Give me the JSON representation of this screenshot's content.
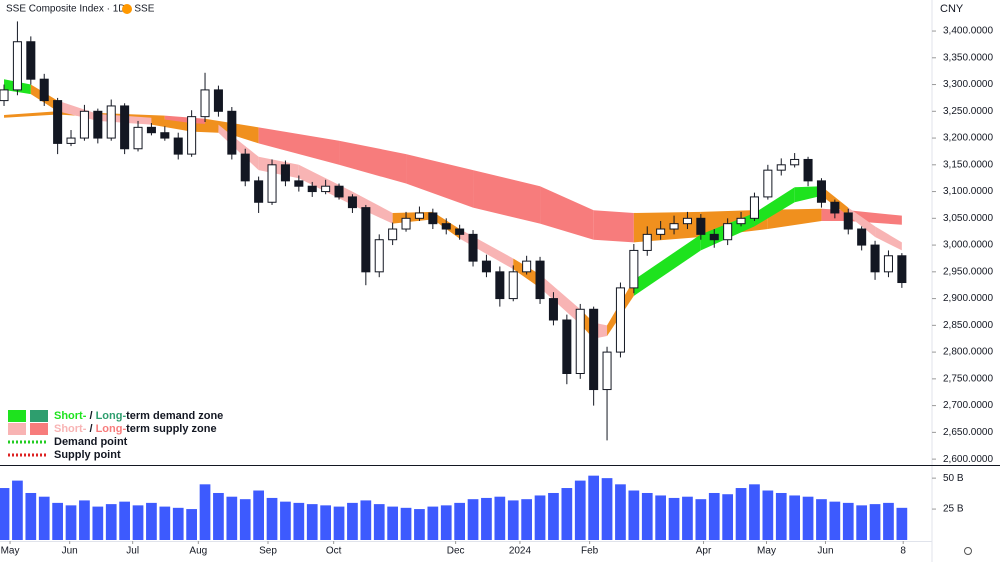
{
  "header": {
    "title": "SSE Composite Index · 1D · SSE",
    "currency": "CNY"
  },
  "chart_data": {
    "type": "candlestick",
    "xlim": [
      -0.3,
      69.1
    ],
    "xticks": [
      {
        "value": 0.45,
        "label": "May"
      },
      {
        "value": 4.9,
        "label": "Jun"
      },
      {
        "value": 9.6,
        "label": "Jul"
      },
      {
        "value": 14.5,
        "label": "Aug"
      },
      {
        "value": 19.7,
        "label": "Sep"
      },
      {
        "value": 24.6,
        "label": "Oct"
      },
      {
        "value": 33.7,
        "label": "Dec"
      },
      {
        "value": 38.5,
        "label": "2024"
      },
      {
        "value": 43.7,
        "label": "Feb"
      },
      {
        "value": 52.2,
        "label": "Apr"
      },
      {
        "value": 56.9,
        "label": "May"
      },
      {
        "value": 61.3,
        "label": "Jun"
      },
      {
        "value": 67.1,
        "label": "8"
      }
    ],
    "ylim": [
      2589,
      3458
    ],
    "yticks": [
      {
        "value": 2600,
        "label": "2,600.0000"
      },
      {
        "value": 2650,
        "label": "2,650.0000"
      },
      {
        "value": 2700,
        "label": "2,700.0000"
      },
      {
        "value": 2750,
        "label": "2,750.0000"
      },
      {
        "value": 2800,
        "label": "2,800.0000"
      },
      {
        "value": 2850,
        "label": "2,850.0000"
      },
      {
        "value": 2900,
        "label": "2,900.0000"
      },
      {
        "value": 2950,
        "label": "2,950.0000"
      },
      {
        "value": 3000,
        "label": "3,000.0000"
      },
      {
        "value": 3050,
        "label": "3,050.0000"
      },
      {
        "value": 3100,
        "label": "3,100.0000"
      },
      {
        "value": 3150,
        "label": "3,150.0000"
      },
      {
        "value": 3200,
        "label": "3,200.0000"
      },
      {
        "value": 3250,
        "label": "3,250.0000"
      },
      {
        "value": 3300,
        "label": "3,300.0000"
      },
      {
        "value": 3350,
        "label": "3,350.0000"
      },
      {
        "value": 3400,
        "label": "3,400.0000"
      }
    ],
    "up_color": "#ffffff",
    "down_color": "#131722",
    "open": [
      3270,
      3290,
      3380,
      3310,
      3270,
      3190,
      3200,
      3250,
      3200,
      3260,
      3180,
      3220,
      3210,
      3200,
      3170,
      3240,
      3290,
      3250,
      3170,
      3120,
      3080,
      3150,
      3120,
      3110,
      3100,
      3110,
      3090,
      3070,
      2950,
      3010,
      3030,
      3050,
      3060,
      3040,
      3030,
      3020,
      2970,
      2950,
      2900,
      2950,
      2970,
      2900,
      2860,
      2760,
      2880,
      2730,
      2800,
      2920,
      2990,
      3020,
      3030,
      3040,
      3050,
      3020,
      3010,
      3040,
      3050,
      3090,
      3140,
      3150,
      3160,
      3120,
      3080,
      3060,
      3030,
      3000,
      2950,
      2980
    ],
    "high": [
      3300,
      3418,
      3390,
      3320,
      3275,
      3215,
      3262,
      3255,
      3272,
      3265,
      3232,
      3228,
      3222,
      3210,
      3252,
      3322,
      3298,
      3258,
      3180,
      3128,
      3160,
      3158,
      3130,
      3118,
      3122,
      3115,
      3095,
      3075,
      3020,
      3042,
      3062,
      3072,
      3068,
      3050,
      3038,
      3028,
      2982,
      2960,
      2962,
      2980,
      2978,
      2912,
      2870,
      2890,
      2885,
      2810,
      2930,
      3002,
      3035,
      3045,
      3055,
      3062,
      3058,
      3030,
      3050,
      3062,
      3098,
      3150,
      3162,
      3172,
      3165,
      3125,
      3085,
      3068,
      3035,
      3008,
      2990,
      2985
    ],
    "low": [
      3260,
      3280,
      3300,
      3260,
      3170,
      3185,
      3195,
      3190,
      3195,
      3170,
      3175,
      3205,
      3195,
      3160,
      3165,
      3230,
      3240,
      3160,
      3110,
      3060,
      3075,
      3110,
      3100,
      3090,
      3095,
      3085,
      3060,
      2925,
      2940,
      3000,
      3025,
      3045,
      3030,
      3020,
      3010,
      2960,
      2940,
      2885,
      2895,
      2945,
      2890,
      2850,
      2740,
      2750,
      2700,
      2635,
      2790,
      2910,
      2980,
      3010,
      3020,
      3030,
      3010,
      2995,
      3000,
      3035,
      3045,
      3085,
      3130,
      3145,
      3110,
      3070,
      3050,
      3020,
      2990,
      2935,
      2940,
      2920
    ],
    "close": [
      3290,
      3380,
      3310,
      3270,
      3190,
      3200,
      3250,
      3200,
      3260,
      3180,
      3220,
      3210,
      3200,
      3170,
      3240,
      3290,
      3250,
      3170,
      3120,
      3080,
      3150,
      3120,
      3110,
      3100,
      3110,
      3090,
      3070,
      2950,
      3010,
      3030,
      3050,
      3060,
      3040,
      3030,
      3020,
      2970,
      2950,
      2900,
      2950,
      2970,
      2900,
      2860,
      2760,
      2880,
      2730,
      2800,
      2920,
      2990,
      3020,
      3030,
      3040,
      3050,
      3020,
      3010,
      3040,
      3050,
      3090,
      3140,
      3150,
      3160,
      3120,
      3080,
      3060,
      3030,
      3000,
      2950,
      2980,
      2930
    ],
    "bands": [
      {
        "x": [
          0,
          4,
          8,
          12,
          15,
          19,
          25,
          30,
          35,
          40,
          44,
          47,
          52,
          57,
          61,
          63,
          67
        ],
        "upper": [
          3243,
          3250,
          3246,
          3242,
          3236,
          3220,
          3195,
          3170,
          3140,
          3110,
          3065,
          3060,
          3062,
          3066,
          3068,
          3065,
          3055
        ],
        "lower": [
          3238,
          3244,
          3238,
          3228,
          3222,
          3190,
          3150,
          3115,
          3070,
          3040,
          3010,
          3005,
          3015,
          3030,
          3045,
          3045,
          3038
        ],
        "colors": [
          "#f0901e",
          "#f0901e",
          "#f0901e",
          "#f77c7c",
          "#f0901e",
          "#f77c7c",
          "#f77c7c",
          "#f77c7c",
          "#f77c7c",
          "#f77c7c",
          "#f77c7c",
          "#f0901e",
          "#f0901e",
          "#f0901e",
          "#f77c7c",
          "#f77c7c",
          "#f77c7c"
        ]
      },
      {
        "x": [
          0,
          2,
          4,
          7,
          11,
          14,
          16,
          19,
          22,
          26,
          29,
          32,
          34,
          38,
          40,
          43,
          44,
          45,
          47,
          52,
          56,
          59,
          61,
          63,
          65,
          67
        ],
        "upper": [
          3310,
          3300,
          3270,
          3245,
          3238,
          3228,
          3225,
          3165,
          3150,
          3100,
          3060,
          3062,
          3030,
          2975,
          2945,
          2880,
          2855,
          2850,
          2935,
          3020,
          3060,
          3108,
          3110,
          3070,
          3035,
          3005
        ],
        "lower": [
          3290,
          3282,
          3250,
          3232,
          3225,
          3212,
          3210,
          3140,
          3125,
          3075,
          3040,
          3048,
          3012,
          2955,
          2920,
          2852,
          2825,
          2830,
          2905,
          2990,
          3035,
          3080,
          3092,
          3055,
          3015,
          2990
        ],
        "colors": [
          "#1ee31e",
          "#f0901e",
          "#f8b4b4",
          "#f8b4b4",
          "#f0901e",
          "#f0901e",
          "#f8b4b4",
          "#f8b4b4",
          "#f8b4b4",
          "#f8b4b4",
          "#f0901e",
          "#f0901e",
          "#f8b4b4",
          "#f0901e",
          "#f8b4b4",
          "#f0901e",
          "#f8b4b4",
          "#f0901e",
          "#1ee31e",
          "#1ee31e",
          "#1ee31e",
          "#1ee31e",
          "#f0901e",
          "#f8b4b4",
          "#f8b4b4",
          "#f8b4b4"
        ]
      }
    ],
    "volume": {
      "color": "#3d5afe",
      "ylim": [
        0,
        59
      ],
      "yticks": [
        {
          "value": 25,
          "label": "25 B"
        },
        {
          "value": 50,
          "label": "50 B"
        }
      ],
      "values": [
        42,
        48,
        38,
        35,
        30,
        28,
        32,
        27,
        29,
        31,
        28,
        30,
        27,
        26,
        25,
        45,
        38,
        35,
        33,
        40,
        34,
        31,
        30,
        29,
        28,
        27,
        30,
        32,
        29,
        27,
        26,
        25,
        27,
        28,
        30,
        33,
        34,
        35,
        32,
        33,
        36,
        38,
        42,
        48,
        52,
        50,
        45,
        40,
        38,
        36,
        34,
        35,
        33,
        38,
        37,
        42,
        45,
        40,
        38,
        36,
        35,
        33,
        31,
        30,
        28,
        29,
        30,
        26
      ]
    },
    "legend": {
      "position": "bottom-left",
      "items": [
        {
          "swatches": [
            "#1ee31e",
            "#2e9e6e"
          ],
          "parts": [
            {
              "text": "Short-",
              "color": "#1ee31e"
            },
            {
              "text": " / "
            },
            {
              "text": "Long-",
              "color": "#2e9e6e"
            },
            {
              "text": "term demand zone"
            }
          ]
        },
        {
          "swatches": [
            "#f8b4b4",
            "#f77c7c"
          ],
          "parts": [
            {
              "text": "Short-",
              "color": "#f8b4b4"
            },
            {
              "text": " / "
            },
            {
              "text": "Long-",
              "color": "#f77c7c"
            },
            {
              "text": "term supply zone"
            }
          ]
        },
        {
          "dotted": "#22cc22",
          "parts": [
            {
              "text": "Demand point"
            }
          ]
        },
        {
          "dotted": "#dd2222",
          "parts": [
            {
              "text": "Supply point"
            }
          ]
        }
      ]
    }
  }
}
